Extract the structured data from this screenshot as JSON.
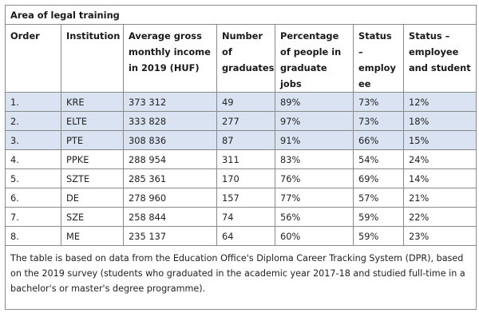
{
  "table": {
    "title": "Area of legal training",
    "headers": {
      "order": "Order",
      "institution": "Institution",
      "income": "Average gross monthly income in 2019 (HUF)",
      "graduates": "Number of graduates",
      "percentage": "Percentage of people in graduate jobs",
      "status_employee": "Status – employ ee",
      "status_employee_student": "Status – employee and student"
    },
    "rows": [
      {
        "order": "1.",
        "institution": "KRE",
        "income": "373 312",
        "graduates": "49",
        "percentage": "89%",
        "status_employee": "73%",
        "status_employee_student": "12%",
        "highlight": true
      },
      {
        "order": "2.",
        "institution": "ELTE",
        "income": "333 828",
        "graduates": "277",
        "percentage": "97%",
        "status_employee": "73%",
        "status_employee_student": "18%",
        "highlight": true
      },
      {
        "order": "3.",
        "institution": "PTE",
        "income": "308 836",
        "graduates": "87",
        "percentage": "91%",
        "status_employee": "66%",
        "status_employee_student": "15%",
        "highlight": true
      },
      {
        "order": "4.",
        "institution": "PPKE",
        "income": "288 954",
        "graduates": "311",
        "percentage": "83%",
        "status_employee": "54%",
        "status_employee_student": "24%",
        "highlight": false
      },
      {
        "order": "5.",
        "institution": "SZTE",
        "income": "285 361",
        "graduates": "170",
        "percentage": "76%",
        "status_employee": "69%",
        "status_employee_student": "14%",
        "highlight": false
      },
      {
        "order": "6.",
        "institution": "DE",
        "income": "278 960",
        "graduates": "157",
        "percentage": "77%",
        "status_employee": "57%",
        "status_employee_student": "21%",
        "highlight": false
      },
      {
        "order": "7.",
        "institution": "SZE",
        "income": "258 844",
        "graduates": "74",
        "percentage": "56%",
        "status_employee": "59%",
        "status_employee_student": "22%",
        "highlight": false
      },
      {
        "order": "8.",
        "institution": "ME",
        "income": "235 137",
        "graduates": "64",
        "percentage": "60%",
        "status_employee": "59%",
        "status_employee_student": "23%",
        "highlight": false
      }
    ],
    "note": "The table is based on data from the Education Office's Diploma Career Tracking System (DPR), based on the 2019 survey (students who graduated in the academic year 2017-18 and studied full-time in a bachelor's or master's degree programme).",
    "highlight_color": "#dae3f2"
  }
}
